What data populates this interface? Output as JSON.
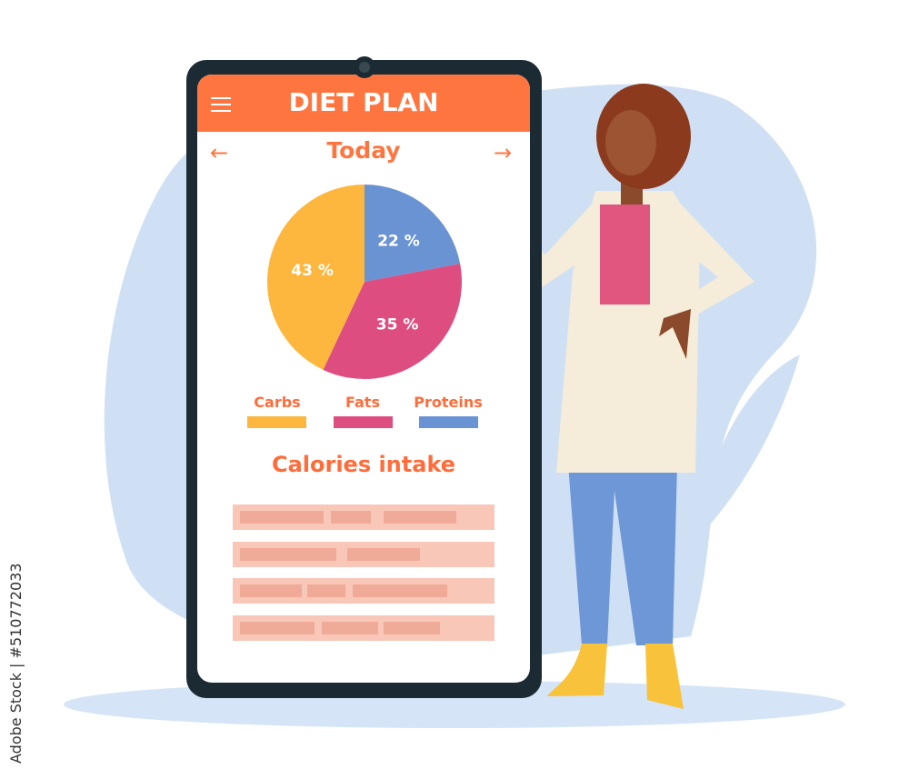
{
  "header": {
    "title": "DIET PLAN",
    "menu_icon": "hamburger-menu-icon"
  },
  "nav": {
    "date_label": "Today",
    "prev_icon": "arrow-left-icon",
    "next_icon": "arrow-right-icon"
  },
  "chart_data": {
    "type": "pie",
    "categories": [
      "Proteins",
      "Fats",
      "Carbs"
    ],
    "values": [
      22,
      35,
      43
    ],
    "labels": [
      "22 %",
      "35 %",
      "43 %"
    ],
    "colors": [
      "#6a93d4",
      "#de4d80",
      "#fdb73e"
    ],
    "start": "12 o'clock, clockwise"
  },
  "legend": [
    {
      "label": "Carbs",
      "color": "#fdb73e"
    },
    {
      "label": "Fats",
      "color": "#de4d80"
    },
    {
      "label": "Proteins",
      "color": "#6a93d4"
    }
  ],
  "calories": {
    "title": "Calories intake",
    "rows": 4
  },
  "watermark": "Adobe Stock | #510772033",
  "colors": {
    "accent": "#ff7540",
    "frame": "#1c2b33",
    "background_blob": "#cfe0f5"
  }
}
